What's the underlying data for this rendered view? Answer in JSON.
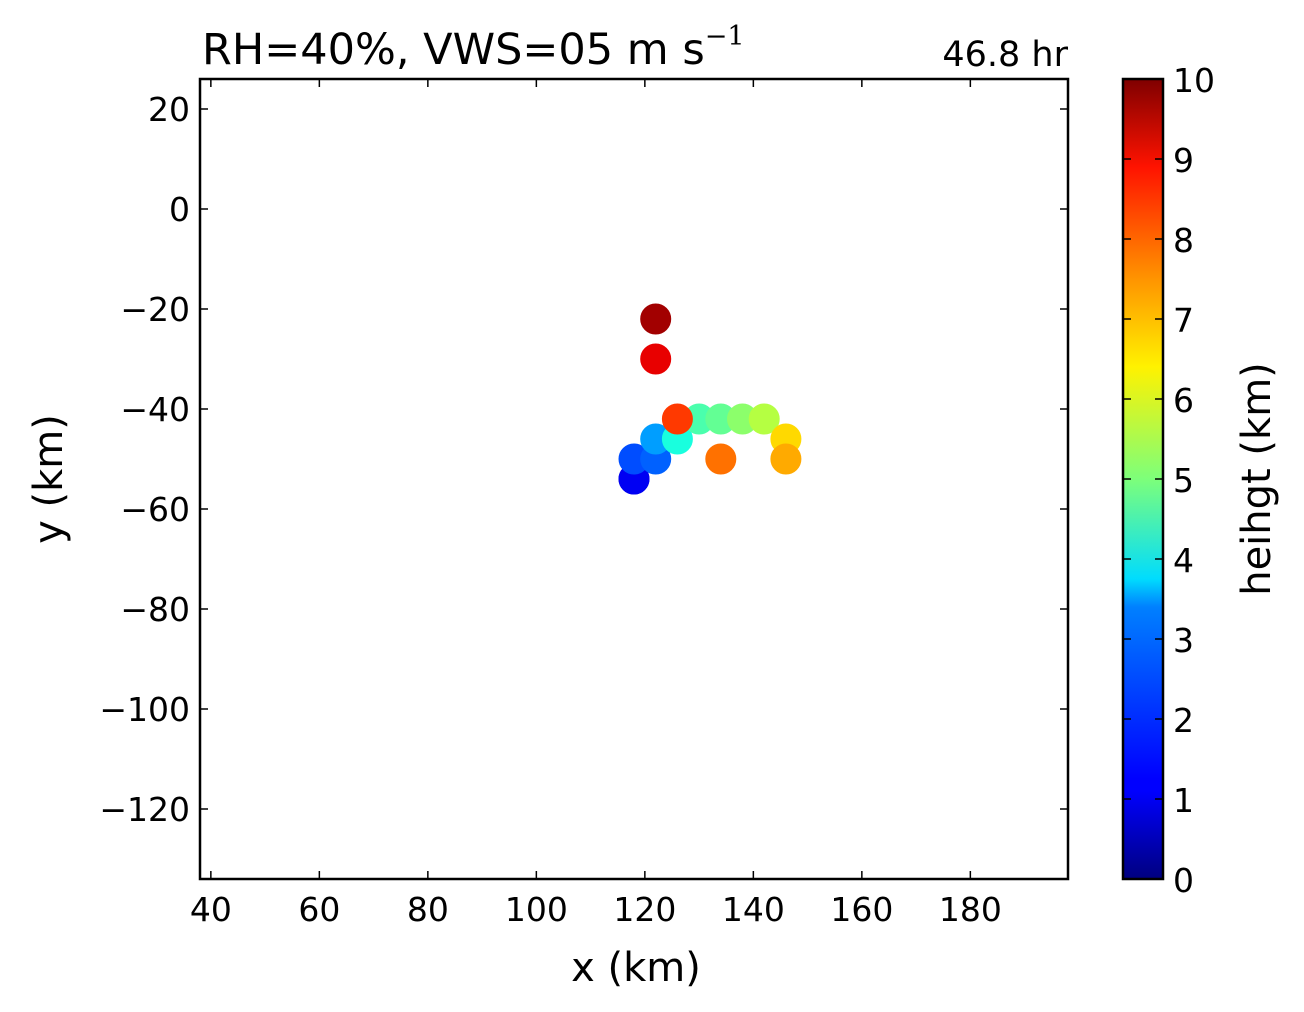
{
  "chart_data": {
    "type": "scatter",
    "title_main": "RH=40%, VWS=05 m s",
    "title_exp": "−1",
    "title_right": "46.8 hr",
    "title_right_color": "#0000ee",
    "xlabel": "x (km)",
    "ylabel": "y (km)",
    "xlim": [
      38,
      198
    ],
    "ylim": [
      -134,
      26
    ],
    "xticks": [
      40,
      60,
      80,
      100,
      120,
      140,
      160,
      180
    ],
    "yticks": [
      20,
      0,
      -20,
      -40,
      -60,
      -80,
      -100,
      -120
    ],
    "xtick_labels": [
      "40",
      "60",
      "80",
      "100",
      "120",
      "140",
      "160",
      "180"
    ],
    "ytick_labels": [
      "20",
      "0",
      "−20",
      "−40",
      "−60",
      "−80",
      "−100",
      "−120"
    ],
    "grid": false,
    "colormap": "jet",
    "colorbar": {
      "label": "heihgt (km)",
      "range": [
        0,
        10
      ],
      "ticks": [
        0,
        1,
        2,
        3,
        4,
        5,
        6,
        7,
        8,
        9,
        10
      ],
      "tick_labels": [
        "0",
        "1",
        "2",
        "3",
        "4",
        "5",
        "6",
        "7",
        "8",
        "9",
        "10"
      ]
    },
    "points": [
      {
        "x": 118,
        "y": -54,
        "height": 0.5
      },
      {
        "x": 118,
        "y": -54,
        "height": 1.0
      },
      {
        "x": 118,
        "y": -50,
        "height": 2.0
      },
      {
        "x": 122,
        "y": -50,
        "height": 2.2
      },
      {
        "x": 122,
        "y": -46,
        "height": 2.8
      },
      {
        "x": 126,
        "y": -46,
        "height": 3.8
      },
      {
        "x": 130,
        "y": -42,
        "height": 4.4
      },
      {
        "x": 134,
        "y": -42,
        "height": 4.7
      },
      {
        "x": 138,
        "y": -42,
        "height": 5.2
      },
      {
        "x": 142,
        "y": -42,
        "height": 5.7
      },
      {
        "x": 146,
        "y": -46,
        "height": 6.8
      },
      {
        "x": 146,
        "y": -50,
        "height": 7.3
      },
      {
        "x": 134,
        "y": -50,
        "height": 7.9
      },
      {
        "x": 126,
        "y": -42,
        "height": 8.5
      },
      {
        "x": 122,
        "y": -30,
        "height": 9.1
      },
      {
        "x": 122,
        "y": -22,
        "height": 9.7
      }
    ]
  }
}
